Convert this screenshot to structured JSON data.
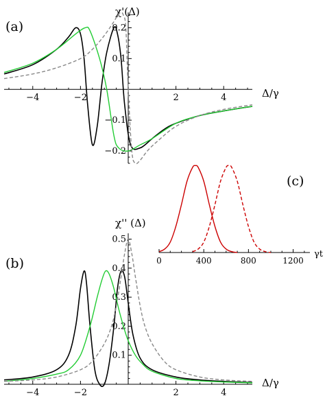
{
  "chart_data": [
    {
      "panel": "(a)",
      "type": "line",
      "title": "",
      "xlabel": "Δ/γ",
      "ylabel": "χ'(Δ)",
      "xlim": [
        -5.2,
        5.2
      ],
      "ylim": [
        -0.24,
        0.25
      ],
      "x_ticks": [
        -4,
        -2,
        2,
        4
      ],
      "x_tick_labels": [
        "−4",
        "−2",
        "2",
        "4"
      ],
      "y_ticks": [
        -0.2,
        -0.1,
        0.1,
        0.2
      ],
      "y_tick_labels": [
        "−0.2",
        "−0.1",
        "0.1",
        "0.2"
      ],
      "grid": false,
      "series": [
        {
          "color": "#000000",
          "style": "solid",
          "x": [
            -5.2,
            -4,
            -3,
            -2.5,
            -2.2,
            -2.0,
            -1.85,
            -1.7,
            -1.5,
            -1.3,
            -1.1,
            -0.9,
            -0.6,
            -0.45,
            -0.3,
            -0.15,
            0.1,
            0.5,
            1,
            1.5,
            2,
            3,
            4,
            5.2
          ],
          "y": [
            0.05,
            0.08,
            0.13,
            0.17,
            0.2,
            0.18,
            0.1,
            -0.05,
            -0.18,
            -0.12,
            0.02,
            0.12,
            0.2,
            0.18,
            0.1,
            -0.05,
            -0.18,
            -0.19,
            -0.16,
            -0.13,
            -0.11,
            -0.085,
            -0.07,
            -0.055
          ]
        },
        {
          "color": "#22cc33",
          "style": "solid",
          "x": [
            -5.2,
            -4,
            -3,
            -2.2,
            -1.8,
            -1.6,
            -1.2,
            -0.9,
            -0.6,
            -0.4,
            0,
            0.5,
            1,
            2,
            3,
            4,
            5.2
          ],
          "y": [
            0.055,
            0.085,
            0.13,
            0.18,
            0.2,
            0.19,
            0.1,
            0.0,
            -0.15,
            -0.19,
            -0.2,
            -0.18,
            -0.16,
            -0.11,
            -0.085,
            -0.07,
            -0.055
          ]
        },
        {
          "color": "#888888",
          "style": "dashed",
          "x": [
            -5.2,
            -4,
            -3,
            -2,
            -1.5,
            -1,
            -0.6,
            -0.45,
            -0.3,
            -0.2,
            -0.1,
            0,
            0.15,
            0.3,
            0.5,
            0.8,
            1.2,
            2,
            3,
            4,
            5.2
          ],
          "y": [
            0.035,
            0.05,
            0.07,
            0.1,
            0.13,
            0.175,
            0.22,
            0.24,
            0.25,
            0.24,
            0.2,
            0.0,
            -0.2,
            -0.24,
            -0.23,
            -0.2,
            -0.17,
            -0.12,
            -0.085,
            -0.065,
            -0.05
          ]
        }
      ]
    },
    {
      "panel": "(b)",
      "type": "line",
      "title": "",
      "xlabel": "Δ/γ",
      "ylabel": "χ'' (Δ)",
      "xlim": [
        -5.2,
        5.2
      ],
      "ylim": [
        0,
        0.52
      ],
      "x_ticks": [
        -4,
        -2,
        2,
        4
      ],
      "x_tick_labels": [
        "−4",
        "−2",
        "2",
        "4"
      ],
      "y_ticks": [
        0.1,
        0.2,
        0.3,
        0.4,
        0.5
      ],
      "y_tick_labels": [
        "0.1",
        "0.2",
        "0.3",
        "0.4",
        "0.5"
      ],
      "grid": false,
      "series": [
        {
          "color": "#000000",
          "style": "solid",
          "x": [
            -5.2,
            -4,
            -3,
            -2.5,
            -2.2,
            -2.0,
            -1.85,
            -1.75,
            -1.6,
            -1.4,
            -1.2,
            -1.0,
            -0.8,
            -0.6,
            -0.45,
            -0.3,
            -0.15,
            0.0,
            0.2,
            0.5,
            1,
            2,
            3,
            4,
            5.2
          ],
          "y": [
            0.015,
            0.025,
            0.05,
            0.1,
            0.2,
            0.33,
            0.39,
            0.35,
            0.2,
            0.05,
            0.0,
            0.0,
            0.07,
            0.2,
            0.33,
            0.39,
            0.37,
            0.28,
            0.17,
            0.09,
            0.05,
            0.025,
            0.015,
            0.01,
            0.006
          ]
        },
        {
          "color": "#22cc33",
          "style": "solid",
          "x": [
            -5.2,
            -4,
            -3,
            -2.5,
            -2.0,
            -1.6,
            -1.3,
            -1.1,
            -0.95,
            -0.8,
            -0.6,
            -0.4,
            -0.2,
            0.0,
            0.3,
            0.6,
            1,
            2,
            3,
            4,
            5.2
          ],
          "y": [
            0.01,
            0.02,
            0.035,
            0.05,
            0.1,
            0.2,
            0.3,
            0.36,
            0.39,
            0.38,
            0.33,
            0.26,
            0.2,
            0.15,
            0.1,
            0.07,
            0.045,
            0.02,
            0.012,
            0.008,
            0.005
          ]
        },
        {
          "color": "#888888",
          "style": "dashed",
          "x": [
            -5.2,
            -4,
            -3,
            -2,
            -1.5,
            -1,
            -0.7,
            -0.5,
            -0.3,
            -0.15,
            0,
            0.15,
            0.3,
            0.5,
            0.7,
            1,
            1.5,
            2,
            3,
            4,
            5.2
          ],
          "y": [
            0.01,
            0.015,
            0.025,
            0.05,
            0.08,
            0.14,
            0.2,
            0.27,
            0.37,
            0.45,
            0.5,
            0.45,
            0.37,
            0.27,
            0.2,
            0.14,
            0.08,
            0.05,
            0.025,
            0.015,
            0.01
          ]
        }
      ]
    },
    {
      "panel": "(c)",
      "type": "line",
      "title": "",
      "xlabel": "γt",
      "ylabel": "",
      "xlim": [
        0,
        1350
      ],
      "ylim": [
        0,
        1.05
      ],
      "x_ticks": [
        0,
        400,
        800,
        1200
      ],
      "x_tick_labels": [
        "0",
        "400",
        "800",
        "1200"
      ],
      "grid": false,
      "series": [
        {
          "color": "#cc0000",
          "style": "solid",
          "x": [
            0,
            50,
            100,
            150,
            200,
            250,
            300,
            325,
            350,
            400,
            450,
            500,
            550,
            600,
            650,
            700
          ],
          "y": [
            0.01,
            0.04,
            0.12,
            0.3,
            0.55,
            0.82,
            0.98,
            1.0,
            0.98,
            0.82,
            0.55,
            0.3,
            0.12,
            0.04,
            0.01,
            0.0
          ]
        },
        {
          "color": "#cc0000",
          "style": "dashed",
          "x": [
            300,
            350,
            400,
            450,
            500,
            550,
            600,
            625,
            650,
            700,
            750,
            800,
            850,
            900,
            950,
            1000
          ],
          "y": [
            0.01,
            0.04,
            0.12,
            0.3,
            0.55,
            0.82,
            0.98,
            1.0,
            0.98,
            0.82,
            0.55,
            0.3,
            0.12,
            0.04,
            0.01,
            0.0
          ]
        }
      ]
    }
  ]
}
